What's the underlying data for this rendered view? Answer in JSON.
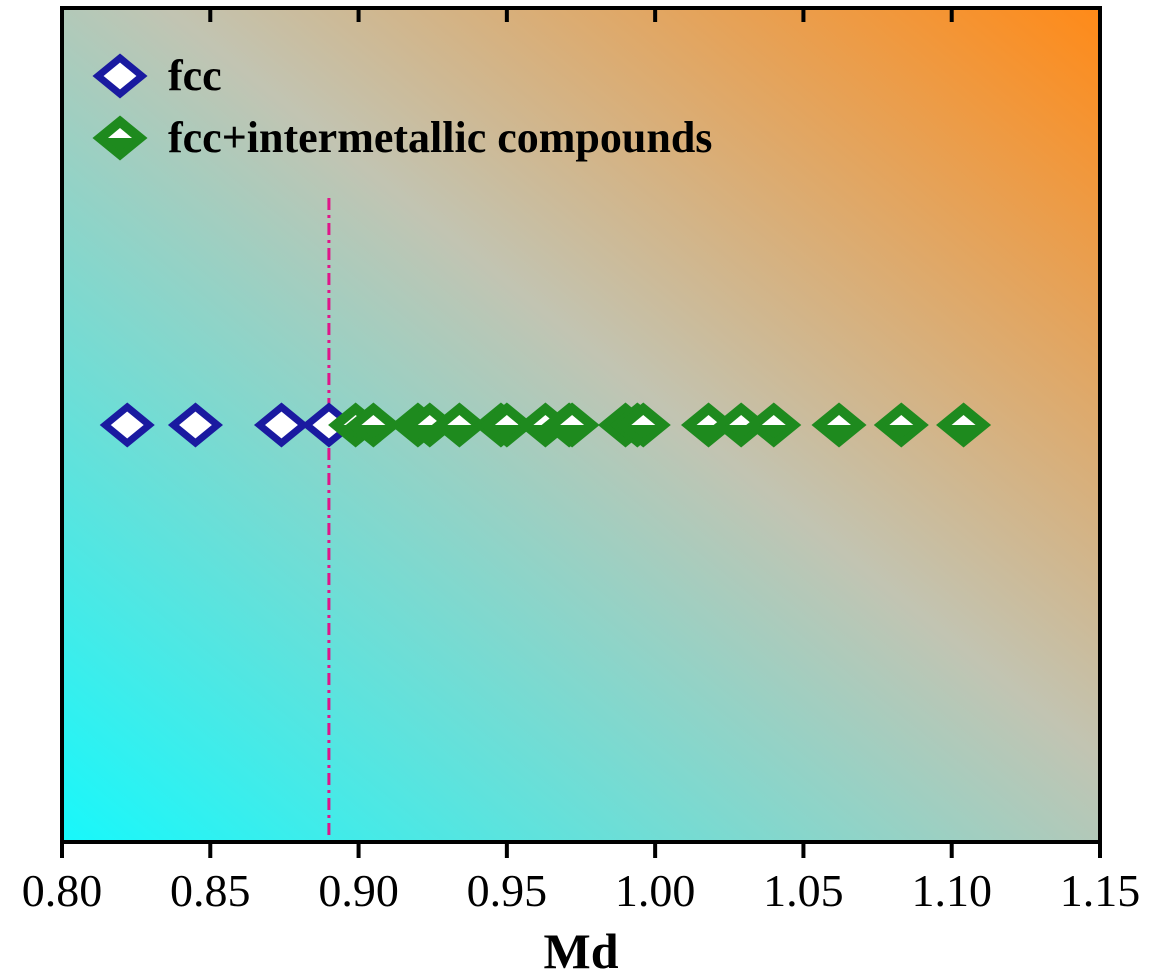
{
  "chart_data": {
    "type": "scatter",
    "xlabel": "Md",
    "ylabel": "",
    "xlim": [
      0.8,
      1.15
    ],
    "xticks": [
      "0.80",
      "0.85",
      "0.90",
      "0.95",
      "1.00",
      "1.05",
      "1.10",
      "1.15"
    ],
    "y_ticks_shown": false,
    "grid": false,
    "legend_position": "top-left",
    "background": "diagonal gradient from cyan (bottom-left) to orange (top-right)",
    "threshold_line": {
      "x": 0.89,
      "style": "dash-dot",
      "color": "#e0158a"
    },
    "series": [
      {
        "name": "fcc",
        "marker": "open-diamond",
        "color": "#1a1aa0",
        "x": [
          0.822,
          0.845,
          0.874,
          0.89
        ],
        "y": [
          1,
          1,
          1,
          1
        ]
      },
      {
        "name": "fcc+intermetallic compounds",
        "marker": "half-filled-diamond",
        "color": "#1e8a1e",
        "x": [
          0.899,
          0.905,
          0.92,
          0.924,
          0.934,
          0.948,
          0.95,
          0.963,
          0.971,
          0.972,
          0.99,
          0.994,
          0.996,
          1.018,
          1.029,
          1.04,
          1.062,
          1.083,
          1.104
        ],
        "y": [
          1,
          1,
          1,
          1,
          1,
          1,
          1,
          1,
          1,
          1,
          1,
          1,
          1,
          1,
          1,
          1,
          1,
          1,
          1
        ]
      }
    ]
  },
  "colors": {
    "gradient_start": "#17f8fb",
    "gradient_mid": "#c2c4b2",
    "gradient_end": "#ff8a18"
  }
}
